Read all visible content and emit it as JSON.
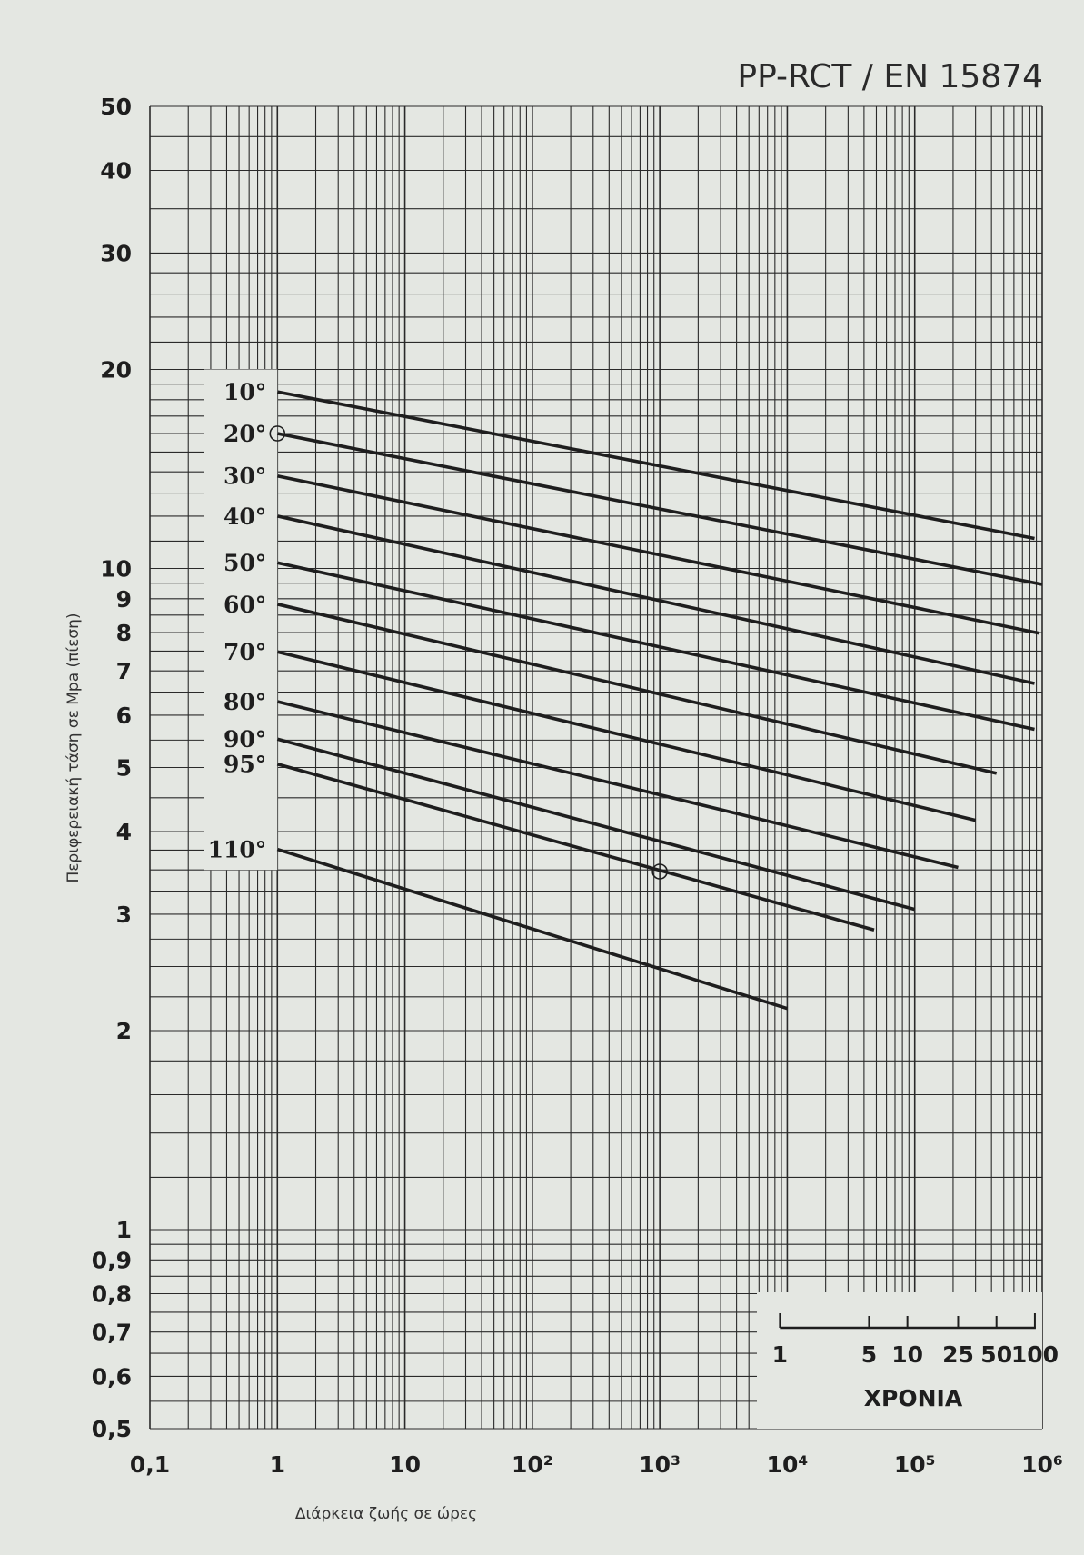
{
  "chart_data": {
    "type": "line",
    "title": "PP-RCT / EN 15874",
    "xlabel": "Διάρκεια ζωής σε ώρες",
    "ylabel": "Περιφερειακή τάση σε Mpa (πίεση)",
    "x_scale": "log",
    "y_scale": "log",
    "xlim": [
      0.1,
      1000000
    ],
    "ylim": [
      0.5,
      50
    ],
    "grid": true,
    "x_ticks": [
      {
        "value": 0.1,
        "label": "0,1"
      },
      {
        "value": 1,
        "label": "1"
      },
      {
        "value": 10,
        "label": "10"
      },
      {
        "value": 100,
        "label": "10²"
      },
      {
        "value": 1000,
        "label": "10³"
      },
      {
        "value": 10000,
        "label": "10⁴"
      },
      {
        "value": 100000,
        "label": "10⁵"
      },
      {
        "value": 1000000,
        "label": "10⁶"
      }
    ],
    "y_ticks": [
      {
        "value": 50,
        "label": "50"
      },
      {
        "value": 40,
        "label": "40"
      },
      {
        "value": 30,
        "label": "30"
      },
      {
        "value": 20,
        "label": "20"
      },
      {
        "value": 10,
        "label": "10"
      },
      {
        "value": 9,
        "label": "9"
      },
      {
        "value": 8,
        "label": "8"
      },
      {
        "value": 7,
        "label": "7"
      },
      {
        "value": 6,
        "label": "6"
      },
      {
        "value": 5,
        "label": "5"
      },
      {
        "value": 4,
        "label": "4"
      },
      {
        "value": 3,
        "label": "3"
      },
      {
        "value": 2,
        "label": "2"
      },
      {
        "value": 1,
        "label": "1"
      },
      {
        "value": 0.9,
        "label": "0,9"
      },
      {
        "value": 0.8,
        "label": "0,8"
      },
      {
        "value": 0.7,
        "label": "0,7"
      },
      {
        "value": 0.6,
        "label": "0,6"
      },
      {
        "value": 0.5,
        "label": "0,5"
      }
    ],
    "series": [
      {
        "name": "10°",
        "x": [
          1,
          870000
        ],
        "y": [
          18.5,
          11.1
        ]
      },
      {
        "name": "20°",
        "x": [
          1,
          1000000
        ],
        "y": [
          16.0,
          9.46
        ]
      },
      {
        "name": "30°",
        "x": [
          1,
          950000
        ],
        "y": [
          13.8,
          7.98
        ]
      },
      {
        "name": "40°",
        "x": [
          1,
          870000
        ],
        "y": [
          12.0,
          6.7
        ]
      },
      {
        "name": "50°",
        "x": [
          1,
          870000
        ],
        "y": [
          10.2,
          5.71
        ]
      },
      {
        "name": "60°",
        "x": [
          1,
          438000
        ],
        "y": [
          8.83,
          4.9
        ]
      },
      {
        "name": "70°",
        "x": [
          1,
          300000
        ],
        "y": [
          7.48,
          4.16
        ]
      },
      {
        "name": "80°",
        "x": [
          1,
          219000
        ],
        "y": [
          6.29,
          3.53
        ]
      },
      {
        "name": "90°",
        "x": [
          1,
          100000
        ],
        "y": [
          5.52,
          3.05
        ]
      },
      {
        "name": "95°",
        "x": [
          1,
          48000
        ],
        "y": [
          5.06,
          2.84
        ]
      },
      {
        "name": "110°",
        "x": [
          1,
          10000
        ],
        "y": [
          3.76,
          2.16
        ]
      }
    ],
    "markers": [
      {
        "x": 1,
        "y": 16.0,
        "shape": "circle"
      },
      {
        "x": 1000,
        "y": 3.48,
        "shape": "circle"
      }
    ],
    "years_scale": {
      "label": "XΡΟΝΙΑ",
      "hours_per_year": 8760,
      "ticks": [
        {
          "value": 1,
          "label": "1"
        },
        {
          "value": 5,
          "label": "5"
        },
        {
          "value": 10,
          "label": "10"
        },
        {
          "value": 25,
          "label": "25"
        },
        {
          "value": 50,
          "label": "50"
        },
        {
          "value": 100,
          "label": "100"
        }
      ]
    },
    "colors": {
      "background": "#e4e7e2",
      "line": "#1e1e1e",
      "grid": "#2a2a2a"
    }
  }
}
